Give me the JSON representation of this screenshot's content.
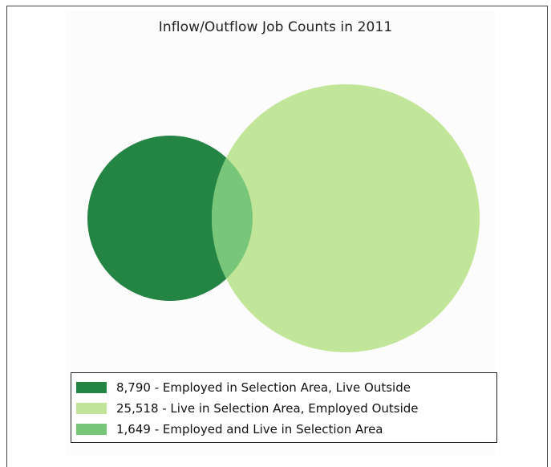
{
  "title": "Inflow/Outflow Job Counts in 2011",
  "colors": {
    "employed_outside": "#238443",
    "live_outside": "#c2e699",
    "overlap": "#78c679"
  },
  "legend": [
    {
      "label": "8,790 - Employed in Selection Area, Live Outside",
      "color": "#238443"
    },
    {
      "label": "25,518 - Live in Selection Area, Employed Outside",
      "color": "#c2e699"
    },
    {
      "label": "1,649 - Employed and Live in Selection Area",
      "color": "#78c679"
    }
  ]
}
